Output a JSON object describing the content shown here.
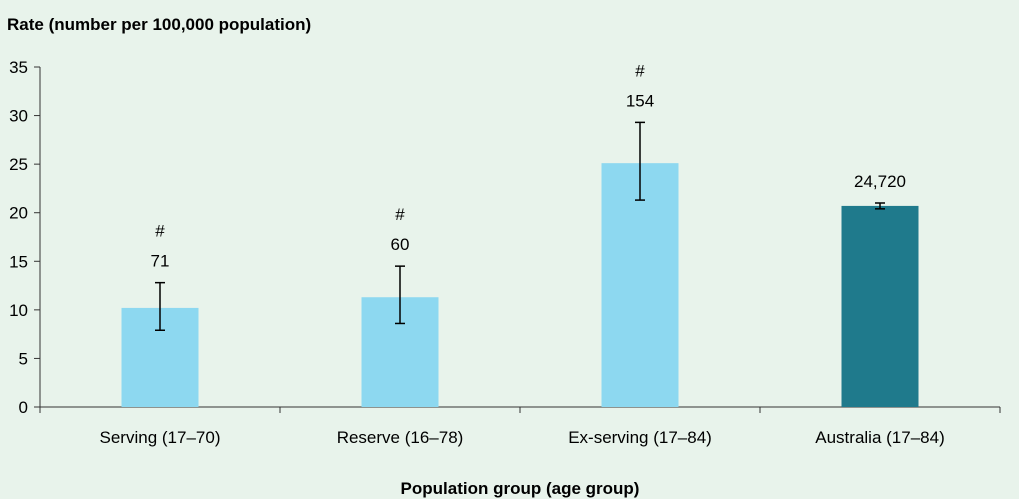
{
  "chart_data": {
    "type": "bar",
    "ylabel": "Rate (number per 100,000 population)",
    "xlabel": "Population group (age group)",
    "ylim": [
      0,
      35
    ],
    "yticks": [
      0,
      5,
      10,
      15,
      20,
      25,
      30,
      35
    ],
    "grid": false,
    "categories": [
      "Serving (17–70)",
      "Reserve (16–78)",
      "Ex-serving (17–84)",
      "Australia (17–84)"
    ],
    "series": [
      {
        "values": [
          10.2,
          11.3,
          25.1,
          20.7
        ],
        "error_low": [
          7.9,
          8.6,
          21.3,
          20.4
        ],
        "error_high": [
          12.8,
          14.5,
          29.3,
          21.0
        ],
        "data_labels": [
          "71",
          "60",
          "154",
          "24,720"
        ],
        "flags": [
          "#",
          "#",
          "#",
          ""
        ],
        "colors": [
          "#8dd8f0",
          "#8dd8f0",
          "#8dd8f0",
          "#1f7a8c"
        ]
      }
    ]
  }
}
